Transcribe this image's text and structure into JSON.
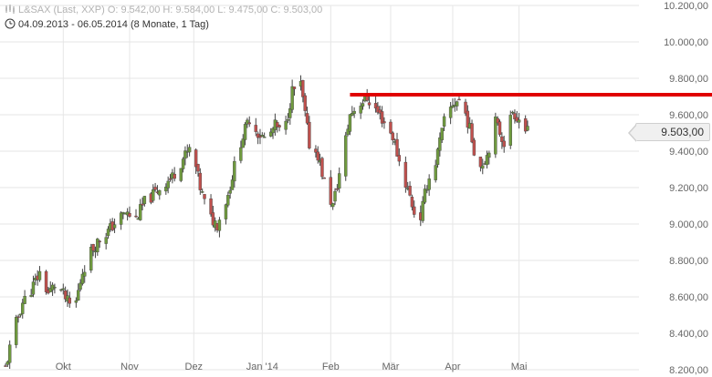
{
  "header": {
    "quote_line": "L&SAX (Last, XXP)  O: 9.542,00  H: 9.584,00  L: 9.475,00  C: 9.503,00",
    "range_line": "04.09.2013 - 06.05.2014 (8 Monate, 1 Tag)"
  },
  "current_price": {
    "label": "9.503,00",
    "value": 9503
  },
  "colors": {
    "up": "#6f9a3e",
    "down": "#c0504d",
    "resistance": "#e00000",
    "grid": "#e6e6e6",
    "axis_text": "#666666"
  },
  "chart_data": {
    "type": "candlestick",
    "x_range": [
      "2013-09-04",
      "2014-05-06"
    ],
    "ylim": [
      8200,
      10200
    ],
    "y_ticks": [
      8200,
      8400,
      8600,
      8800,
      9000,
      9200,
      9400,
      9600,
      9800,
      10000,
      10200
    ],
    "y_tick_labels": [
      "8.200,00",
      "8.400,00",
      "8.600,00",
      "8.800,00",
      "9.000,00",
      "9.200,00",
      "9.400,00",
      "9.600,00",
      "9.800,00",
      "10.000,00",
      "10.200,00"
    ],
    "x_tick_labels": [
      {
        "label": "Okt",
        "date": "2013-10-01"
      },
      {
        "label": "Nov",
        "date": "2013-11-01"
      },
      {
        "label": "Dez",
        "date": "2013-12-01"
      },
      {
        "label": "Jan '14",
        "date": "2014-01-02"
      },
      {
        "label": "Feb",
        "date": "2014-02-03"
      },
      {
        "label": "Mär",
        "date": "2014-03-03"
      },
      {
        "label": "Apr",
        "date": "2014-04-01"
      },
      {
        "label": "Mai",
        "date": "2014-05-02"
      }
    ],
    "grid": true,
    "resistance_line": {
      "value": 9710,
      "from": "2014-02-12",
      "to": "2014-05-06"
    },
    "series": [
      {
        "close_path": [
          [
            "2013-09-04",
            8210
          ],
          [
            "2013-09-08",
            8420
          ],
          [
            "2013-09-12",
            8570
          ],
          [
            "2013-09-16",
            8640
          ],
          [
            "2013-09-20",
            8730
          ],
          [
            "2013-09-24",
            8620
          ],
          [
            "2013-09-28",
            8680
          ],
          [
            "2013-10-02",
            8590
          ],
          [
            "2013-10-06",
            8520
          ],
          [
            "2013-10-10",
            8740
          ],
          [
            "2013-10-14",
            8850
          ],
          [
            "2013-10-18",
            8920
          ],
          [
            "2013-10-22",
            8960
          ],
          [
            "2013-10-26",
            9020
          ],
          [
            "2013-10-30",
            9060
          ],
          [
            "2013-11-04",
            9030
          ],
          [
            "2013-11-08",
            9120
          ],
          [
            "2013-11-12",
            9160
          ],
          [
            "2013-11-16",
            9210
          ],
          [
            "2013-11-21",
            9260
          ],
          [
            "2013-11-26",
            9360
          ],
          [
            "2013-11-30",
            9420
          ],
          [
            "2013-12-04",
            9200
          ],
          [
            "2013-12-08",
            9040
          ],
          [
            "2013-12-12",
            9000
          ],
          [
            "2013-12-17",
            9160
          ],
          [
            "2013-12-22",
            9420
          ],
          [
            "2013-12-27",
            9580
          ],
          [
            "2013-12-31",
            9500
          ],
          [
            "2014-01-04",
            9460
          ],
          [
            "2014-01-08",
            9540
          ],
          [
            "2014-01-12",
            9480
          ],
          [
            "2014-01-16",
            9730
          ],
          [
            "2014-01-20",
            9760
          ],
          [
            "2014-01-24",
            9440
          ],
          [
            "2014-01-28",
            9380
          ],
          [
            "2014-02-01",
            9180
          ],
          [
            "2014-02-04",
            9100
          ],
          [
            "2014-02-08",
            9330
          ],
          [
            "2014-02-12",
            9600
          ],
          [
            "2014-02-16",
            9660
          ],
          [
            "2014-02-20",
            9690
          ],
          [
            "2014-02-24",
            9630
          ],
          [
            "2014-02-28",
            9560
          ],
          [
            "2014-03-04",
            9480
          ],
          [
            "2014-03-08",
            9300
          ],
          [
            "2014-03-12",
            9150
          ],
          [
            "2014-03-16",
            8980
          ],
          [
            "2014-03-20",
            9220
          ],
          [
            "2014-03-24",
            9340
          ],
          [
            "2014-03-28",
            9560
          ],
          [
            "2014-04-01",
            9660
          ],
          [
            "2014-04-05",
            9690
          ],
          [
            "2014-04-09",
            9520
          ],
          [
            "2014-04-13",
            9300
          ],
          [
            "2014-04-17",
            9380
          ],
          [
            "2014-04-21",
            9560
          ],
          [
            "2014-04-25",
            9450
          ],
          [
            "2014-04-29",
            9620
          ],
          [
            "2014-05-03",
            9560
          ],
          [
            "2014-05-06",
            9503
          ]
        ]
      }
    ]
  }
}
